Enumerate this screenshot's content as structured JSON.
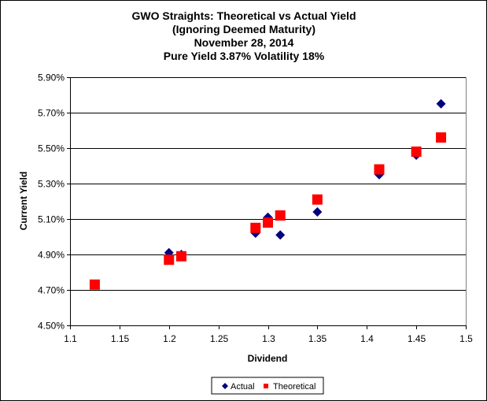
{
  "chart_data": {
    "type": "scatter",
    "title": [
      "GWO Straights:  Theoretical vs Actual Yield",
      "(Ignoring Deemed Maturity)",
      "November 28, 2014",
      "Pure Yield 3.87% Volatility 18%"
    ],
    "xlabel": "Dividend",
    "ylabel": "Current Yield",
    "xlim": [
      1.1,
      1.5
    ],
    "ylim": [
      4.5,
      5.9
    ],
    "x_ticks": [
      "1.1",
      "1.15",
      "1.2",
      "1.25",
      "1.3",
      "1.35",
      "1.4",
      "1.45",
      "1.5"
    ],
    "y_ticks": [
      "4.50%",
      "4.70%",
      "4.90%",
      "5.10%",
      "5.30%",
      "5.50%",
      "5.70%",
      "5.90%"
    ],
    "grid": "horizontal major gridlines",
    "legend_position": "bottom",
    "series": [
      {
        "name": "Actual",
        "marker": "diamond",
        "color": "#000080",
        "points": [
          [
            1.125,
            4.73
          ],
          [
            1.2,
            4.91
          ],
          [
            1.2125,
            4.9
          ],
          [
            1.2875,
            5.02
          ],
          [
            1.3,
            5.11
          ],
          [
            1.3125,
            5.01
          ],
          [
            1.35,
            5.14
          ],
          [
            1.4125,
            5.35
          ],
          [
            1.45,
            5.46
          ],
          [
            1.475,
            5.75
          ]
        ]
      },
      {
        "name": "Theoretical",
        "marker": "square",
        "color": "#FF0000",
        "points": [
          [
            1.125,
            4.73
          ],
          [
            1.2,
            4.87
          ],
          [
            1.2125,
            4.89
          ],
          [
            1.2875,
            5.05
          ],
          [
            1.3,
            5.08
          ],
          [
            1.3125,
            5.12
          ],
          [
            1.35,
            5.21
          ],
          [
            1.4125,
            5.38
          ],
          [
            1.45,
            5.48
          ],
          [
            1.475,
            5.56
          ]
        ]
      }
    ]
  }
}
